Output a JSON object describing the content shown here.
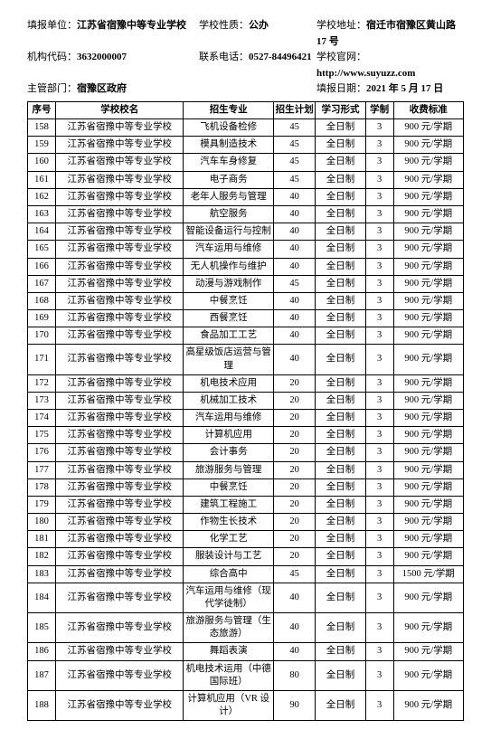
{
  "header": {
    "report_unit_label": "填报单位：",
    "report_unit": "江苏省宿豫中等专业学校",
    "school_nature_label": "学校性质：",
    "school_nature": "公办",
    "school_addr_label": "学校地址：",
    "school_addr": "宿迁市宿豫区黄山路 17 号",
    "org_code_label": "机构代码：",
    "org_code": "3632000007",
    "contact_label": "联系电话：",
    "contact": "0527-84496421",
    "website_label": "学校官网：",
    "website": "http://www.suyuzz.com",
    "dept_label": "主管部门：",
    "dept": "宿豫区政府",
    "report_date_label": "填报日期：",
    "report_date": "2021 年 5 月 17 日"
  },
  "columns": [
    "序号",
    "学校校名",
    "招生专业",
    "招生计划",
    "学习形式",
    "学制",
    "收费标准"
  ],
  "rows": [
    {
      "idx": "158",
      "school": "江苏省宿豫中等专业学校",
      "major": "飞机设备检修",
      "plan": "45",
      "mode": "全日制",
      "years": "3",
      "fee": "900 元/学期"
    },
    {
      "idx": "159",
      "school": "江苏省宿豫中等专业学校",
      "major": "模具制造技术",
      "plan": "45",
      "mode": "全日制",
      "years": "3",
      "fee": "900 元/学期"
    },
    {
      "idx": "160",
      "school": "江苏省宿豫中等专业学校",
      "major": "汽车车身修复",
      "plan": "45",
      "mode": "全日制",
      "years": "3",
      "fee": "900 元/学期"
    },
    {
      "idx": "161",
      "school": "江苏省宿豫中等专业学校",
      "major": "电子商务",
      "plan": "45",
      "mode": "全日制",
      "years": "3",
      "fee": "900 元/学期"
    },
    {
      "idx": "162",
      "school": "江苏省宿豫中等专业学校",
      "major": "老年人服务与管理",
      "plan": "40",
      "mode": "全日制",
      "years": "3",
      "fee": "900 元/学期"
    },
    {
      "idx": "163",
      "school": "江苏省宿豫中等专业学校",
      "major": "航空服务",
      "plan": "40",
      "mode": "全日制",
      "years": "3",
      "fee": "900 元/学期"
    },
    {
      "idx": "164",
      "school": "江苏省宿豫中等专业学校",
      "major": "智能设备运行与控制",
      "plan": "40",
      "mode": "全日制",
      "years": "3",
      "fee": "900 元/学期"
    },
    {
      "idx": "165",
      "school": "江苏省宿豫中等专业学校",
      "major": "汽车运用与维修",
      "plan": "40",
      "mode": "全日制",
      "years": "3",
      "fee": "900 元/学期"
    },
    {
      "idx": "166",
      "school": "江苏省宿豫中等专业学校",
      "major": "无人机操作与维护",
      "plan": "40",
      "mode": "全日制",
      "years": "3",
      "fee": "900 元/学期"
    },
    {
      "idx": "167",
      "school": "江苏省宿豫中等专业学校",
      "major": "动漫与游戏制作",
      "plan": "45",
      "mode": "全日制",
      "years": "3",
      "fee": "900 元/学期"
    },
    {
      "idx": "168",
      "school": "江苏省宿豫中等专业学校",
      "major": "中餐烹饪",
      "plan": "40",
      "mode": "全日制",
      "years": "3",
      "fee": "900 元/学期"
    },
    {
      "idx": "169",
      "school": "江苏省宿豫中等专业学校",
      "major": "西餐烹饪",
      "plan": "40",
      "mode": "全日制",
      "years": "3",
      "fee": "900 元/学期"
    },
    {
      "idx": "170",
      "school": "江苏省宿豫中等专业学校",
      "major": "食品加工工艺",
      "plan": "40",
      "mode": "全日制",
      "years": "3",
      "fee": "900 元/学期"
    },
    {
      "idx": "171",
      "school": "江苏省宿豫中等专业学校",
      "major": "高星级饭店运营与管理",
      "plan": "40",
      "mode": "全日制",
      "years": "3",
      "fee": "900 元/学期"
    },
    {
      "idx": "172",
      "school": "江苏省宿豫中等专业学校",
      "major": "机电技术应用",
      "plan": "20",
      "mode": "全日制",
      "years": "3",
      "fee": "900 元/学期"
    },
    {
      "idx": "173",
      "school": "江苏省宿豫中等专业学校",
      "major": "机械加工技术",
      "plan": "20",
      "mode": "全日制",
      "years": "3",
      "fee": "900 元/学期"
    },
    {
      "idx": "174",
      "school": "江苏省宿豫中等专业学校",
      "major": "汽车运用与维修",
      "plan": "20",
      "mode": "全日制",
      "years": "3",
      "fee": "900 元/学期"
    },
    {
      "idx": "175",
      "school": "江苏省宿豫中等专业学校",
      "major": "计算机应用",
      "plan": "20",
      "mode": "全日制",
      "years": "3",
      "fee": "900 元/学期"
    },
    {
      "idx": "176",
      "school": "江苏省宿豫中等专业学校",
      "major": "会计事务",
      "plan": "20",
      "mode": "全日制",
      "years": "3",
      "fee": "900 元/学期"
    },
    {
      "idx": "177",
      "school": "江苏省宿豫中等专业学校",
      "major": "旅游服务与管理",
      "plan": "20",
      "mode": "全日制",
      "years": "3",
      "fee": "900 元/学期"
    },
    {
      "idx": "178",
      "school": "江苏省宿豫中等专业学校",
      "major": "中餐烹饪",
      "plan": "20",
      "mode": "全日制",
      "years": "3",
      "fee": "900 元/学期"
    },
    {
      "idx": "179",
      "school": "江苏省宿豫中等专业学校",
      "major": "建筑工程施工",
      "plan": "20",
      "mode": "全日制",
      "years": "3",
      "fee": "900 元/学期"
    },
    {
      "idx": "180",
      "school": "江苏省宿豫中等专业学校",
      "major": "作物生长技术",
      "plan": "20",
      "mode": "全日制",
      "years": "3",
      "fee": "900 元/学期"
    },
    {
      "idx": "181",
      "school": "江苏省宿豫中等专业学校",
      "major": "化学工艺",
      "plan": "20",
      "mode": "全日制",
      "years": "3",
      "fee": "900 元/学期"
    },
    {
      "idx": "182",
      "school": "江苏省宿豫中等专业学校",
      "major": "服装设计与工艺",
      "plan": "20",
      "mode": "全日制",
      "years": "3",
      "fee": "900 元/学期"
    },
    {
      "idx": "183",
      "school": "江苏省宿豫中等专业学校",
      "major": "综合高中",
      "plan": "45",
      "mode": "全日制",
      "years": "3",
      "fee": "1500 元/学期"
    },
    {
      "idx": "184",
      "school": "江苏省宿豫中等专业学校",
      "major": "汽车运用与维修（现代学徒制）",
      "plan": "40",
      "mode": "全日制",
      "years": "3",
      "fee": "900 元/学期"
    },
    {
      "idx": "185",
      "school": "江苏省宿豫中等专业学校",
      "major": "旅游服务与管理（生态旅游）",
      "plan": "40",
      "mode": "全日制",
      "years": "3",
      "fee": "900 元/学期"
    },
    {
      "idx": "186",
      "school": "江苏省宿豫中等专业学校",
      "major": "舞蹈表演",
      "plan": "40",
      "mode": "全日制",
      "years": "3",
      "fee": "900 元/学期"
    },
    {
      "idx": "187",
      "school": "江苏省宿豫中等专业学校",
      "major": "机电技术运用（中德国际班）",
      "plan": "80",
      "mode": "全日制",
      "years": "3",
      "fee": "900 元/学期"
    },
    {
      "idx": "188",
      "school": "江苏省宿豫中等专业学校",
      "major": "计算机应用（VR 设计）",
      "plan": "90",
      "mode": "全日制",
      "years": "3",
      "fee": "900 元/学期"
    }
  ]
}
